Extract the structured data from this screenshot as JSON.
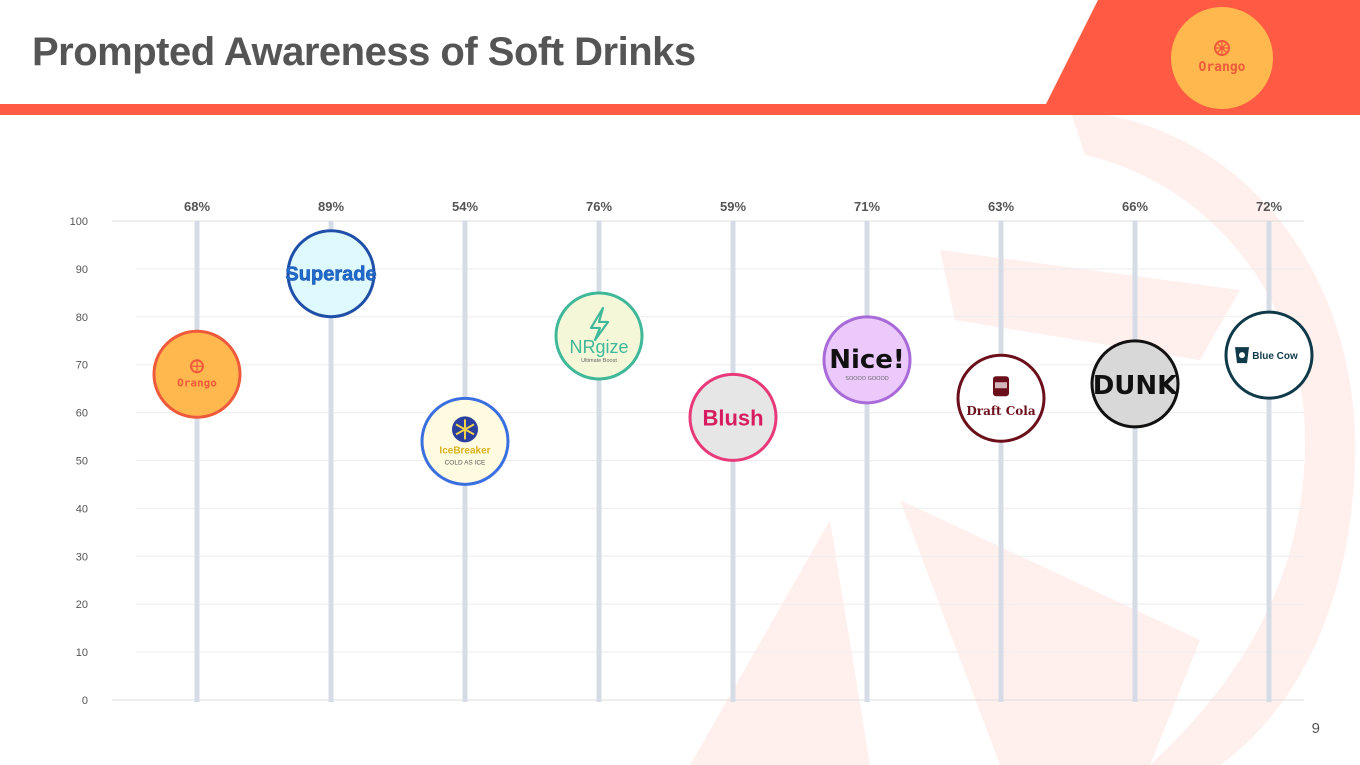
{
  "slide": {
    "title": "Prompted Awareness of Soft Drinks",
    "page_number": "9",
    "logo_text": "Orango"
  },
  "colors": {
    "accent": "#ff5a44",
    "logo_circle": "#ffb84d",
    "title_text": "#555555",
    "stem": "#d6dce6",
    "grid": "#e9e9e9"
  },
  "chart_data": {
    "type": "scatter",
    "title": "",
    "ylim": [
      0,
      100
    ],
    "yticks": [
      0,
      10,
      20,
      30,
      40,
      50,
      60,
      70,
      80,
      90,
      100
    ],
    "grid": true,
    "categories": [
      "Orango",
      "Superade",
      "IceBreaker",
      "NRgize",
      "Blush",
      "Nice!",
      "Draft Cola",
      "DUNK",
      "Blue Cow"
    ],
    "values": [
      68,
      89,
      54,
      76,
      59,
      71,
      63,
      66,
      72
    ],
    "value_labels": [
      "68%",
      "89%",
      "54%",
      "76%",
      "59%",
      "71%",
      "63%",
      "66%",
      "72%"
    ],
    "markers": [
      {
        "text": "Orango",
        "sub": "",
        "border": "#f05a3c",
        "fill": "#ffb84d",
        "color": "#f05a3c",
        "icon": "orange-icon"
      },
      {
        "text": "Superade",
        "sub": "",
        "border": "#1f4fa8",
        "fill": "#dffaff",
        "color": "#1f6fd0",
        "icon": ""
      },
      {
        "text": "IceBreaker",
        "sub": "COLD AS ICE",
        "border": "#3a6fe0",
        "fill": "#fffbe0",
        "color": "#d8b11a",
        "icon": "snowflake-icon"
      },
      {
        "text": "NRgize",
        "sub": "Ultimate Boost",
        "border": "#3fb89a",
        "fill": "#f5f8d8",
        "color": "#3fb89a",
        "icon": "lightning-icon"
      },
      {
        "text": "Blush",
        "sub": "",
        "border": "#e83a7a",
        "fill": "#e6e6e6",
        "color": "#d81c60",
        "icon": ""
      },
      {
        "text": "Nice!",
        "sub": "SOOOO GOOOD",
        "border": "#a86ad8",
        "fill": "#ecc9fb",
        "color": "#111111",
        "icon": ""
      },
      {
        "text": "Draft Cola",
        "sub": "",
        "border": "#6b0f1a",
        "fill": "#ffffff",
        "color": "#6b0f1a",
        "icon": "can-icon"
      },
      {
        "text": "DUNK",
        "sub": "",
        "border": "#111111",
        "fill": "#d8d8d8",
        "color": "#111111",
        "icon": ""
      },
      {
        "text": "Blue Cow",
        "sub": "",
        "border": "#103a4a",
        "fill": "#ffffff",
        "color": "#103a4a",
        "icon": "cow-icon"
      }
    ]
  }
}
